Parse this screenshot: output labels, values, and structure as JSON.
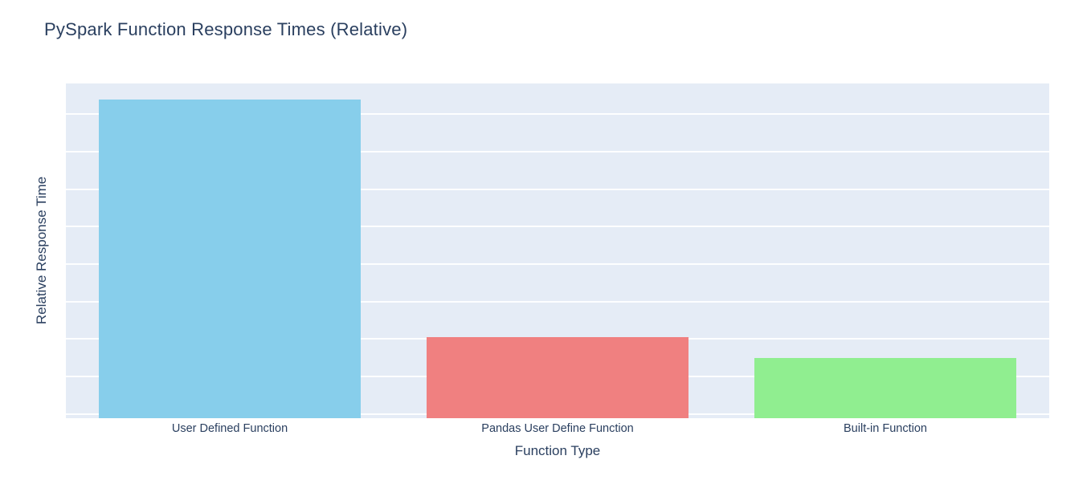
{
  "page": {
    "background": "#ffffff",
    "text_color": "#2a3f5f"
  },
  "chart_data": {
    "type": "bar",
    "title": "PySpark Function Response Times (Relative)",
    "xlabel": "Function Type",
    "ylabel": "Relative Response Time",
    "categories": [
      "User Defined Function",
      "Pandas User Define Function",
      "Built-in Function"
    ],
    "values": [
      8.4,
      2.05,
      1.5
    ],
    "bar_colors": [
      "#87ceeb",
      "#f08080",
      "#90ee90"
    ],
    "bar_width_frac": 0.8,
    "ylim": [
      -0.11,
      8.82
    ],
    "gridline_values": [
      0,
      1,
      2,
      3,
      4,
      5,
      6,
      7,
      8
    ],
    "y_tick_labels_visible": false,
    "grid": true,
    "legend_position": "none",
    "plot_bg": "#e5ecf6",
    "gridline_color": "#ffffff",
    "text_color": "#2a3f5f"
  }
}
